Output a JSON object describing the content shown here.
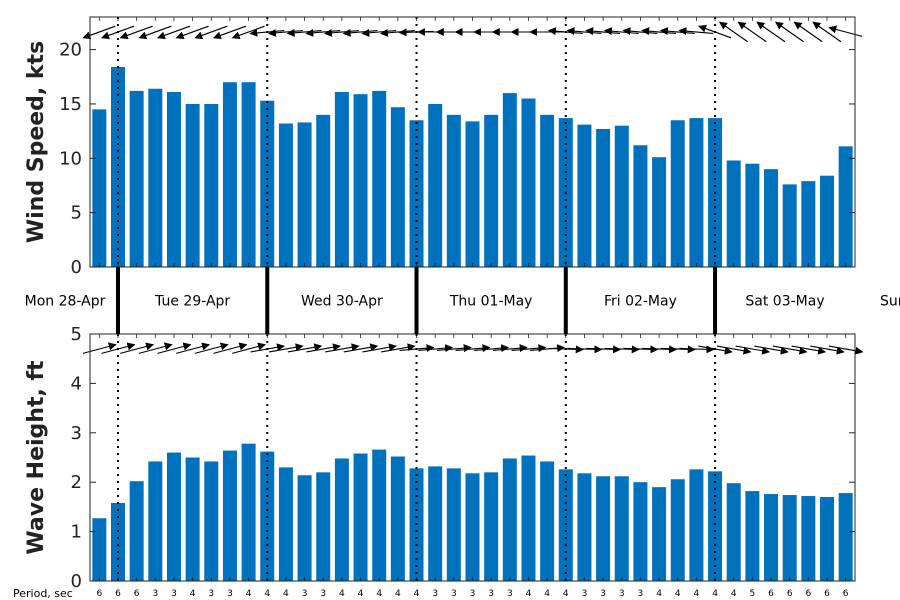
{
  "chart_data": [
    {
      "type": "bar",
      "panel": "wind",
      "ylabel": "Wind Speed, kts",
      "ylim": [
        0,
        23
      ],
      "yticks": [
        0,
        5,
        10,
        15,
        20
      ],
      "grid": false,
      "bar_color": "#0072bd",
      "values": [
        14.5,
        18.4,
        16.2,
        16.4,
        16.1,
        15.0,
        15.0,
        17.0,
        17.0,
        15.3,
        13.2,
        13.3,
        14.0,
        16.1,
        15.9,
        16.2,
        14.7,
        13.5,
        15.0,
        14.0,
        13.4,
        14.0,
        16.0,
        15.5,
        14.0,
        13.7,
        13.1,
        12.7,
        13.0,
        11.2,
        10.1,
        13.5,
        13.7,
        13.7,
        9.8,
        9.5,
        9.0,
        7.6,
        7.9,
        8.4,
        11.1
      ],
      "wind_direction_deg": [
        250,
        250,
        250,
        250,
        250,
        250,
        250,
        250,
        250,
        265,
        265,
        265,
        265,
        265,
        265,
        265,
        265,
        268,
        270,
        270,
        270,
        270,
        270,
        270,
        270,
        275,
        275,
        275,
        275,
        275,
        275,
        275,
        275,
        290,
        305,
        305,
        305,
        305,
        305,
        305,
        285
      ]
    },
    {
      "type": "bar",
      "panel": "wave",
      "ylabel": "Wave Height, ft",
      "ylim": [
        0,
        5
      ],
      "yticks": [
        0,
        1,
        2,
        3,
        4,
        5
      ],
      "grid": false,
      "bar_color": "#0072bd",
      "values": [
        1.27,
        1.58,
        2.02,
        2.42,
        2.6,
        2.5,
        2.42,
        2.64,
        2.78,
        2.62,
        2.3,
        2.14,
        2.2,
        2.48,
        2.58,
        2.66,
        2.52,
        2.28,
        2.32,
        2.28,
        2.18,
        2.2,
        2.48,
        2.54,
        2.42,
        2.26,
        2.18,
        2.12,
        2.12,
        2.0,
        1.9,
        2.06,
        2.26,
        2.22,
        1.98,
        1.82,
        1.76,
        1.74,
        1.72,
        1.7,
        1.78
      ],
      "wave_direction_deg": [
        75,
        75,
        75,
        75,
        75,
        75,
        75,
        75,
        75,
        80,
        80,
        80,
        80,
        80,
        80,
        80,
        80,
        85,
        85,
        85,
        85,
        85,
        85,
        85,
        85,
        92,
        92,
        92,
        92,
        92,
        92,
        92,
        92,
        100,
        100,
        100,
        100,
        100,
        100,
        100,
        100
      ],
      "period_title": "Period, sec",
      "periods": [
        "6",
        "6",
        "6",
        "3",
        "3",
        "4",
        "3",
        "3",
        "4",
        "4",
        "4",
        "3",
        "3",
        "4",
        "4",
        "4",
        "4",
        "4",
        "3",
        "3",
        "3",
        "3",
        "3",
        "4",
        "4",
        "4",
        "3",
        "3",
        "3",
        "3",
        "4",
        "4",
        "4",
        "4",
        "4",
        "5",
        "6",
        "6",
        "6",
        "6",
        "6"
      ]
    }
  ],
  "days": [
    {
      "label": "Mon 28-Apr"
    },
    {
      "label": "Tue 29-Apr"
    },
    {
      "label": "Wed 30-Apr"
    },
    {
      "label": "Thu 01-May"
    },
    {
      "label": "Fri 02-May"
    },
    {
      "label": "Sat 03-May"
    },
    {
      "label": "Sun"
    }
  ],
  "day_boundaries_after_bar": [
    1,
    9,
    17,
    25,
    33
  ]
}
